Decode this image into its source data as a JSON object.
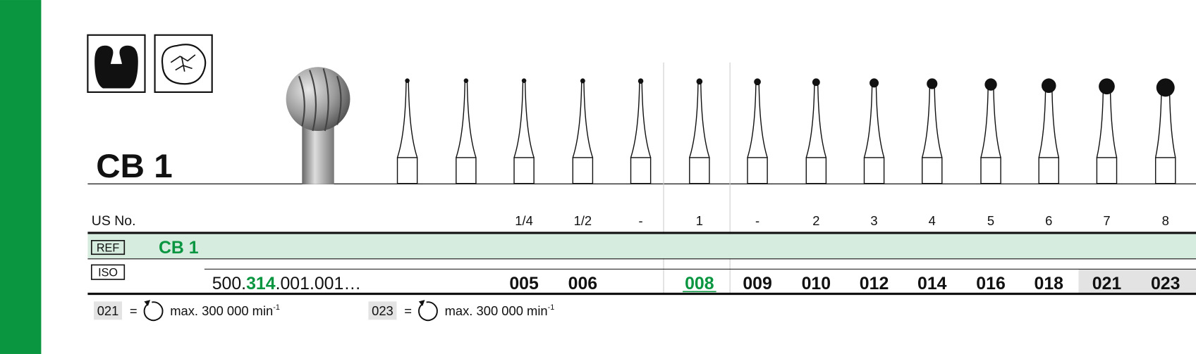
{
  "title": "CB 1",
  "us_label": "US No.",
  "columns": [
    {
      "us": "1/4",
      "iso": "005"
    },
    {
      "us": "1/2",
      "iso": "006"
    },
    {
      "us": "-"
    },
    {
      "us": "1",
      "iso": "008"
    },
    {
      "us": "-",
      "iso": "009"
    },
    {
      "us": "2",
      "iso": "010"
    },
    {
      "us": "3",
      "iso": "012"
    },
    {
      "us": "4",
      "iso": "014"
    },
    {
      "us": "5",
      "iso": "016"
    },
    {
      "us": "6",
      "iso": "018"
    },
    {
      "us": "7",
      "iso": "021"
    },
    {
      "us": "8",
      "iso": "023"
    }
  ],
  "ref": {
    "label": "REF",
    "value": "CB 1"
  },
  "iso": {
    "label": "ISO",
    "prefix": "500.",
    "highlight": "314",
    "suffix": ".001.001…"
  },
  "footnotes": [
    {
      "code": "021",
      "eq": "=",
      "text": "max. 300 000 min",
      "sup": "-1"
    },
    {
      "code": "023",
      "eq": "=",
      "text": "max. 300 000 min",
      "sup": "-1"
    }
  ]
}
